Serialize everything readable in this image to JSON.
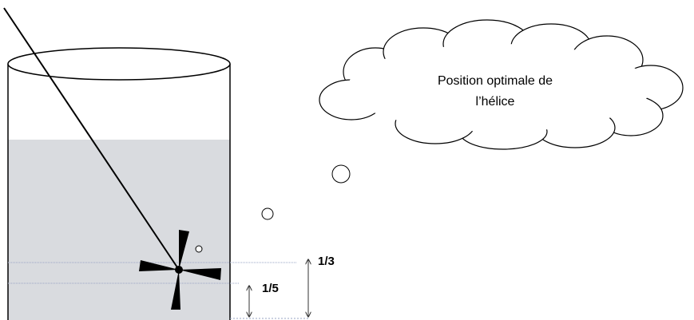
{
  "cloud": {
    "lines": [
      "Position optimale de",
      "l’hélice"
    ]
  },
  "labels": {
    "third": "1/3",
    "fifth": "1/5"
  }
}
